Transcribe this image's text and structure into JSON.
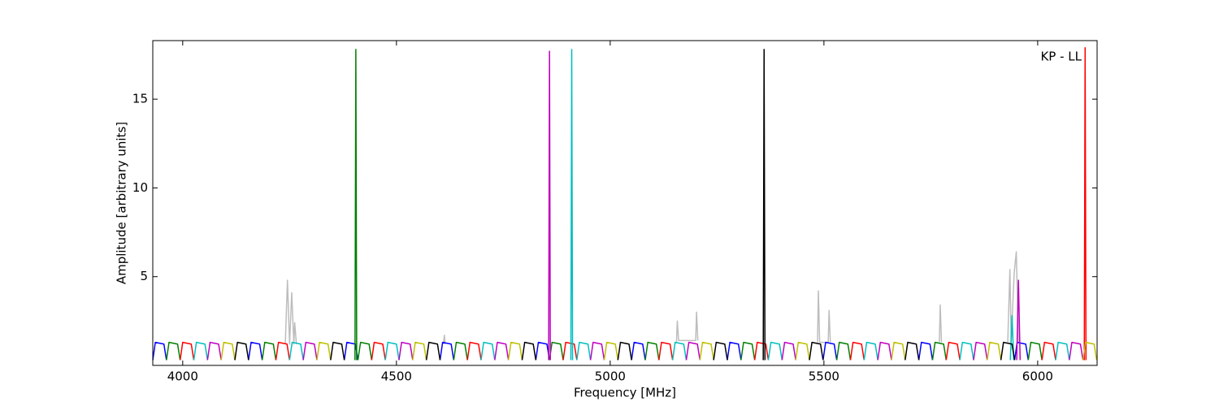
{
  "chart_data": {
    "type": "line",
    "annotation": "KP - LL",
    "x_label": "Frequency [MHz]",
    "y_label": "Amplitude [arbitrary units]",
    "xlim": [
      3930,
      6139
    ],
    "ylim": [
      0,
      18.3
    ],
    "xticks": [
      4000,
      4500,
      5000,
      5500,
      6000
    ],
    "yticks": [
      5,
      10,
      15
    ],
    "grid": false,
    "series": [
      {
        "color": "#bdbdbd",
        "x": [
          4240,
          4245,
          4250,
          4255,
          4260,
          4262,
          4266,
          null,
          4610,
          4612,
          4614,
          null,
          5155,
          5157,
          5160,
          5200,
          5202,
          5205,
          null,
          5485,
          5487,
          5490,
          5510,
          5512,
          5515,
          null,
          5770,
          5772,
          5775,
          null,
          5930,
          5935,
          5938,
          5945,
          5950,
          5955
        ],
        "values": [
          1.2,
          4.8,
          1.2,
          4.1,
          1.2,
          2.4,
          1.2,
          null,
          1.2,
          1.7,
          1.2,
          null,
          1.3,
          2.5,
          1.4,
          1.4,
          3.0,
          1.4,
          null,
          1.3,
          4.2,
          1.3,
          1.3,
          3.1,
          1.3,
          null,
          1.3,
          3.4,
          1.3,
          null,
          1.3,
          5.4,
          1.3,
          5.2,
          6.4,
          1.3
        ]
      },
      {
        "color": "#0000ff",
        "x": [
          3930,
          3936,
          3956,
          3962,
          null,
          4154,
          4160,
          4180,
          4186,
          null,
          4378,
          4384,
          4404,
          4410,
          null,
          4602,
          4608,
          4628,
          4634,
          null,
          4826,
          4832,
          4852,
          4858,
          null,
          5050,
          5056,
          5076,
          5082,
          null,
          5274,
          5280,
          5300,
          5306,
          null,
          5498,
          5504,
          5524,
          5530,
          null,
          5722,
          5728,
          5748,
          5754,
          null,
          5946,
          5952,
          5972,
          5978
        ],
        "values": [
          0.3,
          1.3,
          1.2,
          0.3,
          null,
          0.3,
          1.3,
          1.2,
          0.3,
          null,
          0.3,
          1.3,
          1.2,
          0.3,
          null,
          0.3,
          1.3,
          1.2,
          0.3,
          null,
          0.3,
          1.3,
          1.2,
          0.3,
          null,
          0.3,
          1.3,
          1.2,
          0.3,
          null,
          0.3,
          1.3,
          1.2,
          0.3,
          null,
          0.3,
          1.3,
          1.2,
          0.3,
          null,
          0.3,
          1.3,
          1.2,
          0.3,
          null,
          0.3,
          1.3,
          1.2,
          0.3
        ]
      },
      {
        "color": "#008000",
        "x": [
          3962,
          3968,
          3988,
          3994,
          null,
          4186,
          4192,
          4212,
          4218,
          null,
          4403,
          4405,
          4407,
          null,
          4410,
          4416,
          4436,
          4442,
          null,
          4634,
          4640,
          4660,
          4666,
          null,
          4858,
          4864,
          4884,
          4890,
          null,
          5082,
          5088,
          5108,
          5114,
          null,
          5306,
          5312,
          5332,
          5338,
          null,
          5530,
          5536,
          5556,
          5562,
          null,
          5754,
          5760,
          5780,
          5786,
          null,
          5978,
          5984,
          6004,
          6010
        ],
        "values": [
          0.3,
          1.3,
          1.2,
          0.3,
          null,
          0.3,
          1.3,
          1.2,
          0.3,
          null,
          0.3,
          17.8,
          0.3,
          null,
          0.3,
          1.3,
          1.2,
          0.3,
          null,
          0.3,
          1.3,
          1.2,
          0.3,
          null,
          0.3,
          1.3,
          1.2,
          0.3,
          null,
          0.3,
          1.3,
          1.2,
          0.3,
          null,
          0.3,
          1.3,
          1.2,
          0.3,
          null,
          0.3,
          1.3,
          1.2,
          0.3,
          null,
          0.3,
          1.3,
          1.2,
          0.3,
          null,
          0.3,
          1.3,
          1.2,
          0.3
        ]
      },
      {
        "color": "#ff0000",
        "x": [
          3994,
          4000,
          4020,
          4026,
          null,
          4218,
          4224,
          4244,
          4250,
          null,
          4442,
          4448,
          4468,
          4474,
          null,
          4666,
          4672,
          4692,
          4698,
          null,
          4890,
          4896,
          4916,
          4922,
          null,
          5114,
          5120,
          5140,
          5146,
          null,
          5338,
          5344,
          5364,
          5370,
          null,
          5562,
          5568,
          5588,
          5594,
          null,
          5786,
          5792,
          5812,
          5818,
          null,
          6010,
          6016,
          6036,
          6042,
          null,
          6109,
          6111,
          6113
        ],
        "values": [
          0.3,
          1.3,
          1.2,
          0.3,
          null,
          0.3,
          1.3,
          1.2,
          0.3,
          null,
          0.3,
          1.3,
          1.2,
          0.3,
          null,
          0.3,
          1.3,
          1.2,
          0.3,
          null,
          0.3,
          1.3,
          1.2,
          0.3,
          null,
          0.3,
          1.3,
          1.2,
          0.3,
          null,
          0.3,
          1.3,
          1.2,
          0.3,
          null,
          0.3,
          1.3,
          1.2,
          0.3,
          null,
          0.3,
          1.3,
          1.2,
          0.3,
          null,
          0.3,
          1.3,
          1.2,
          0.3,
          null,
          0.3,
          17.9,
          0.3
        ]
      },
      {
        "color": "#00bfbf",
        "x": [
          4026,
          4032,
          4052,
          4058,
          null,
          4250,
          4256,
          4276,
          4282,
          null,
          4474,
          4480,
          4500,
          4506,
          null,
          4698,
          4704,
          4724,
          4730,
          null,
          4908,
          4910,
          4912,
          null,
          4922,
          4928,
          4948,
          4954,
          null,
          5146,
          5152,
          5172,
          5178,
          null,
          5370,
          5376,
          5396,
          5402,
          null,
          5594,
          5600,
          5620,
          5626,
          null,
          5818,
          5824,
          5844,
          5850,
          null,
          5936,
          5940,
          5944,
          null,
          6042,
          6048,
          6068,
          6074
        ],
        "values": [
          0.3,
          1.3,
          1.2,
          0.3,
          null,
          0.3,
          1.3,
          1.2,
          0.3,
          null,
          0.3,
          1.3,
          1.2,
          0.3,
          null,
          0.3,
          1.3,
          1.2,
          0.3,
          null,
          0.3,
          17.8,
          0.3,
          null,
          0.3,
          1.3,
          1.2,
          0.3,
          null,
          0.3,
          1.3,
          1.2,
          0.3,
          null,
          0.3,
          1.3,
          1.2,
          0.3,
          null,
          0.3,
          1.3,
          1.2,
          0.3,
          null,
          0.3,
          1.3,
          1.2,
          0.3,
          null,
          0.3,
          2.8,
          0.3,
          null,
          0.3,
          1.3,
          1.2,
          0.3
        ]
      },
      {
        "color": "#bf00bf",
        "x": [
          4058,
          4064,
          4084,
          4090,
          null,
          4282,
          4288,
          4308,
          4314,
          null,
          4506,
          4512,
          4532,
          4538,
          null,
          4730,
          4736,
          4756,
          4762,
          null,
          4856,
          4858,
          4860,
          null,
          4954,
          4960,
          4980,
          4986,
          null,
          5178,
          5184,
          5204,
          5210,
          null,
          5402,
          5408,
          5428,
          5434,
          null,
          5626,
          5632,
          5652,
          5658,
          null,
          5850,
          5856,
          5876,
          5882,
          null,
          5951,
          5955,
          5959,
          null,
          6074,
          6080,
          6100,
          6106
        ],
        "values": [
          0.3,
          1.3,
          1.2,
          0.3,
          null,
          0.3,
          1.3,
          1.2,
          0.3,
          null,
          0.3,
          1.3,
          1.2,
          0.3,
          null,
          0.3,
          1.3,
          1.2,
          0.3,
          null,
          0.3,
          17.7,
          0.3,
          null,
          0.3,
          1.3,
          1.2,
          0.3,
          null,
          0.3,
          1.3,
          1.2,
          0.3,
          null,
          0.3,
          1.3,
          1.2,
          0.3,
          null,
          0.3,
          1.3,
          1.2,
          0.3,
          null,
          0.3,
          1.3,
          1.2,
          0.3,
          null,
          0.3,
          4.8,
          0.3,
          null,
          0.3,
          1.3,
          1.2,
          0.3
        ]
      },
      {
        "color": "#bfbf00",
        "x": [
          4090,
          4096,
          4116,
          4122,
          null,
          4314,
          4320,
          4340,
          4346,
          null,
          4538,
          4544,
          4564,
          4570,
          null,
          4762,
          4768,
          4788,
          4794,
          null,
          4986,
          4992,
          5012,
          5018,
          null,
          5210,
          5216,
          5236,
          5242,
          null,
          5434,
          5440,
          5460,
          5466,
          null,
          5658,
          5664,
          5684,
          5690,
          null,
          5882,
          5888,
          5908,
          5914,
          null,
          6106,
          6112,
          6132,
          6138
        ],
        "values": [
          0.3,
          1.3,
          1.2,
          0.3,
          null,
          0.3,
          1.3,
          1.2,
          0.3,
          null,
          0.3,
          1.3,
          1.2,
          0.3,
          null,
          0.3,
          1.3,
          1.2,
          0.3,
          null,
          0.3,
          1.3,
          1.2,
          0.3,
          null,
          0.3,
          1.3,
          1.2,
          0.3,
          null,
          0.3,
          1.3,
          1.2,
          0.3,
          null,
          0.3,
          1.3,
          1.2,
          0.3,
          null,
          0.3,
          1.3,
          1.2,
          0.3,
          null,
          0.3,
          1.3,
          1.2,
          0.3
        ]
      },
      {
        "color": "#000000",
        "x": [
          4122,
          4128,
          4148,
          4154,
          null,
          4346,
          4352,
          4372,
          4378,
          null,
          4570,
          4576,
          4596,
          4602,
          null,
          4794,
          4800,
          4820,
          4826,
          null,
          5018,
          5024,
          5044,
          5050,
          null,
          5242,
          5248,
          5268,
          5274,
          null,
          5358,
          5360,
          5362,
          null,
          5466,
          5472,
          5492,
          5498,
          null,
          5690,
          5696,
          5716,
          5722,
          null,
          5914,
          5920,
          5940,
          5946
        ],
        "values": [
          0.3,
          1.3,
          1.2,
          0.3,
          null,
          0.3,
          1.3,
          1.2,
          0.3,
          null,
          0.3,
          1.3,
          1.2,
          0.3,
          null,
          0.3,
          1.3,
          1.2,
          0.3,
          null,
          0.3,
          1.3,
          1.2,
          0.3,
          null,
          0.3,
          1.3,
          1.2,
          0.3,
          null,
          0.3,
          17.8,
          0.3,
          null,
          0.3,
          1.3,
          1.2,
          0.3,
          null,
          0.3,
          1.3,
          1.2,
          0.3,
          null,
          0.3,
          1.3,
          1.2,
          0.3
        ]
      }
    ]
  }
}
